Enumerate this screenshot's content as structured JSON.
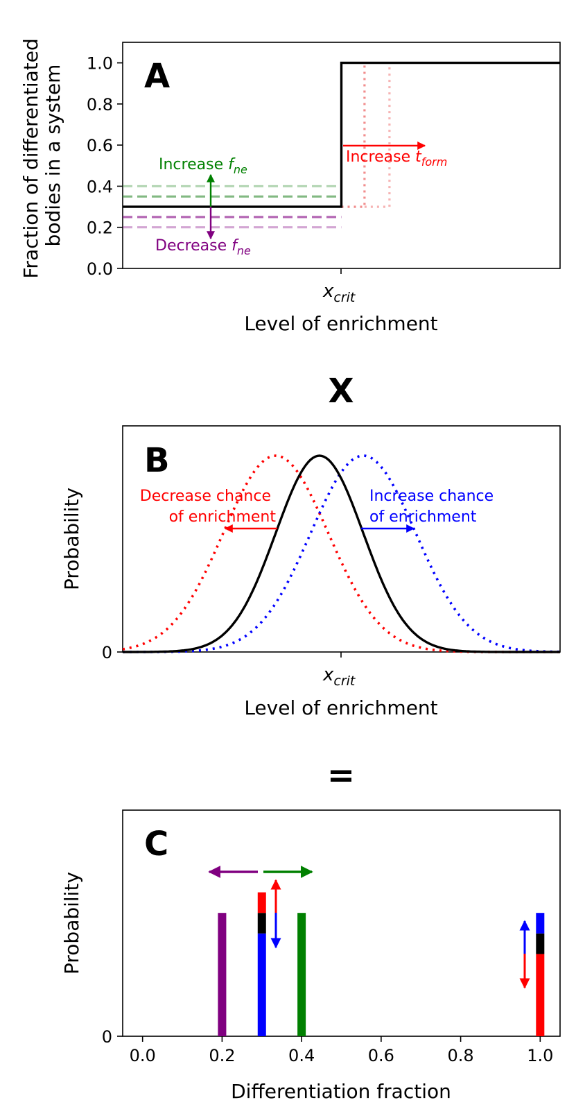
{
  "operators": {
    "times": "X",
    "equals": "="
  },
  "chart_data": [
    {
      "type": "line",
      "panel": "A",
      "xlabel": "Level of enrichment",
      "x_tick": {
        "base": "x",
        "sub": "crit"
      },
      "ylabel_lines": [
        "Fraction of differentiated",
        "bodies in a system"
      ],
      "ylim": [
        0,
        1.1
      ],
      "xlim": [
        0,
        1
      ],
      "yticks": [
        "0.0",
        "0.2",
        "0.4",
        "0.6",
        "0.8",
        "1.0"
      ],
      "series": [
        {
          "style": "solid",
          "color": "#000000",
          "x": [
            0,
            0.5,
            0.5,
            1
          ],
          "y": [
            0.3,
            0.3,
            1.0,
            1.0
          ]
        },
        {
          "style": "dashed",
          "color": "#2e8b2e",
          "opacity": 0.35,
          "x": [
            0,
            0.5
          ],
          "y": [
            0.4,
            0.4
          ]
        },
        {
          "style": "dashed",
          "color": "#2e8b2e",
          "opacity": 0.6,
          "x": [
            0,
            0.5
          ],
          "y": [
            0.35,
            0.35
          ]
        },
        {
          "style": "dashed",
          "color": "#800080",
          "opacity": 0.6,
          "x": [
            0,
            0.5
          ],
          "y": [
            0.25,
            0.25
          ]
        },
        {
          "style": "dashed",
          "color": "#800080",
          "opacity": 0.35,
          "x": [
            0,
            0.5
          ],
          "y": [
            0.2,
            0.2
          ]
        },
        {
          "style": "dotted",
          "color": "#f08080",
          "opacity": 0.9,
          "x": [
            0.5,
            0.553,
            0.553
          ],
          "y": [
            0.3,
            0.3,
            1.0
          ]
        },
        {
          "style": "dotted",
          "color": "#f08080",
          "opacity": 0.6,
          "x": [
            0.553,
            0.61,
            0.61
          ],
          "y": [
            0.3,
            0.3,
            1.0
          ]
        }
      ],
      "annotations": [
        {
          "base": "Increase ",
          "sub": "ne",
          "italic_part": "f",
          "color": "#008000"
        },
        {
          "base": "Decrease ",
          "sub": "ne",
          "italic_part": "f",
          "color": "#800080"
        },
        {
          "base": "Increase ",
          "sub": "form",
          "italic_part": "t",
          "color": "#ff0000"
        }
      ]
    },
    {
      "type": "line",
      "panel": "B",
      "xlabel": "Level of enrichment",
      "x_tick": {
        "base": "x",
        "sub": "crit"
      },
      "ylabel": "Probability",
      "yticks": [
        "0"
      ],
      "series": [
        {
          "style": "solid",
          "color": "#000000",
          "mean": 0.45,
          "sd": 0.1
        },
        {
          "style": "dotted",
          "color": "#ff0000",
          "mean": 0.35,
          "sd": 0.12
        },
        {
          "style": "dotted",
          "color": "#0000ff",
          "mean": 0.55,
          "sd": 0.12
        }
      ],
      "annotations": [
        {
          "lines": [
            "Decrease chance",
            "of enrichment"
          ],
          "color": "#ff0000"
        },
        {
          "lines": [
            "Increase chance",
            "of enrichment"
          ],
          "color": "#0000ff"
        }
      ]
    },
    {
      "type": "bar",
      "panel": "C",
      "xlabel": "Differentiation fraction",
      "ylabel": "Probability",
      "xlim": [
        -0.05,
        1.05
      ],
      "ylim": [
        0,
        1.1
      ],
      "xticks": [
        "0.0",
        "0.2",
        "0.4",
        "0.6",
        "0.8",
        "1.0"
      ],
      "yticks": [
        "0"
      ],
      "bars": [
        {
          "x": 0.2,
          "segments": [
            {
              "color": "#800080",
              "from": 0,
              "to": 0.6
            }
          ]
        },
        {
          "x": 0.3,
          "segments": [
            {
              "color": "#0000ff",
              "from": 0,
              "to": 0.5
            },
            {
              "color": "#000000",
              "from": 0.5,
              "to": 0.6
            },
            {
              "color": "#ff0000",
              "from": 0.6,
              "to": 0.7
            }
          ]
        },
        {
          "x": 0.4,
          "segments": [
            {
              "color": "#008000",
              "from": 0,
              "to": 0.6
            }
          ]
        },
        {
          "x": 1.0,
          "segments": [
            {
              "color": "#ff0000",
              "from": 0,
              "to": 0.4
            },
            {
              "color": "#000000",
              "from": 0.4,
              "to": 0.5
            },
            {
              "color": "#0000ff",
              "from": 0.5,
              "to": 0.6
            }
          ]
        }
      ]
    }
  ]
}
